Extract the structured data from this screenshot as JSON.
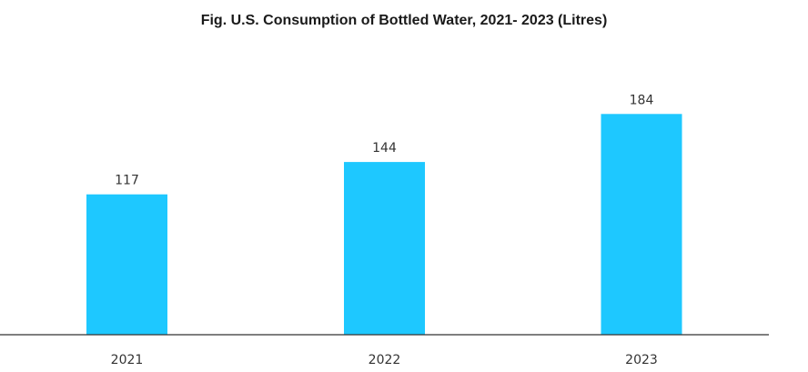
{
  "chart_data": {
    "type": "bar",
    "title": "Fig. U.S. Consumption of Bottled Water, 2021- 2023 (Litres)",
    "categories": [
      "2021",
      "2022",
      "2023"
    ],
    "values": [
      117,
      144,
      184
    ],
    "value_labels": [
      "117",
      "144",
      "184"
    ],
    "xlabel": "",
    "ylabel": "",
    "grid": false,
    "legend": "none",
    "bar_color": "#1ec8ff",
    "axis_color": "#333333"
  }
}
